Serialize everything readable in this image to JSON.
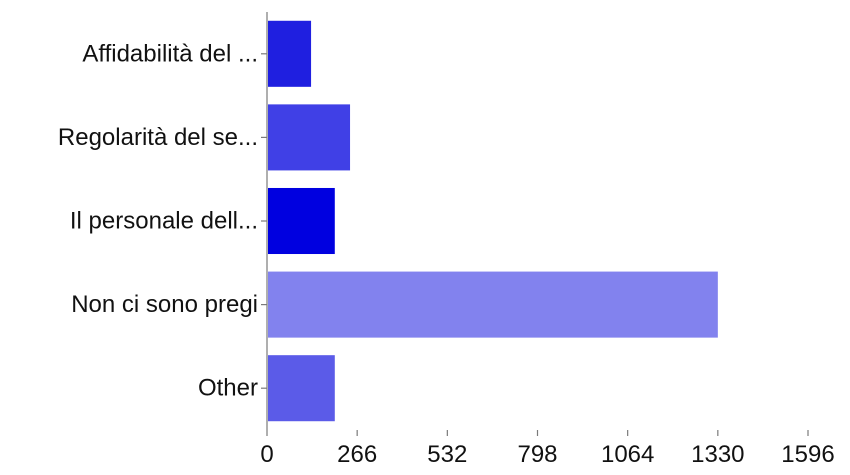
{
  "chart_data": {
    "type": "bar",
    "orientation": "horizontal",
    "title": "",
    "xlabel": "",
    "ylabel": "",
    "categories": [
      "Affidabilità del ...",
      "Regolarità del se...",
      "Il personale dell...",
      "Non ci sono pregi",
      "Other"
    ],
    "values": [
      130,
      245,
      200,
      1330,
      200
    ],
    "colors": [
      "#1f1fe0",
      "#4040e6",
      "#0000e0",
      "#8282ee",
      "#5b5be8"
    ],
    "xlim": [
      0,
      1596
    ],
    "xticks": [
      "0",
      "266",
      "532",
      "798",
      "1064",
      "1330",
      "1596"
    ],
    "grid": false,
    "legend": "none"
  }
}
